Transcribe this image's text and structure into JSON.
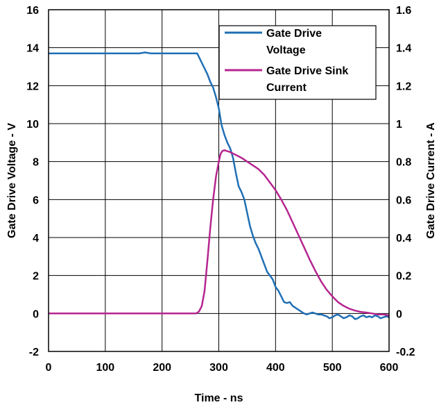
{
  "chart_data": {
    "type": "line",
    "title": "",
    "xlabel": "Time - ns",
    "ylabel": "Gate Drive Voltage - V",
    "y2label": "Gate Drive Current - A",
    "xlim": [
      0,
      600
    ],
    "ylim": [
      -2,
      16
    ],
    "y2lim": [
      -0.2,
      1.6
    ],
    "x_ticks": [
      "0",
      "100",
      "200",
      "300",
      "400",
      "500",
      "600"
    ],
    "y_ticks": [
      "-2",
      "0",
      "2",
      "4",
      "6",
      "8",
      "10",
      "12",
      "14",
      "16"
    ],
    "y2_ticks": [
      "-0.2",
      "0",
      "0.2",
      "0.4",
      "0.6",
      "0.8",
      "1",
      "1.2",
      "1.4",
      "1.6"
    ],
    "grid": true,
    "legend_position": "top-right",
    "series": [
      {
        "name": "Gate Drive Voltage",
        "axis": "left",
        "color": "#1f6fb5",
        "x": [
          0,
          100,
          160,
          170,
          180,
          240,
          262,
          270,
          280,
          285,
          290,
          295,
          300,
          305,
          310,
          315,
          320,
          325,
          330,
          335,
          340,
          345,
          350,
          355,
          360,
          365,
          370,
          375,
          380,
          385,
          390,
          395,
          400,
          405,
          410,
          415,
          420,
          425,
          430,
          435,
          440,
          445,
          450,
          455,
          460,
          465,
          470,
          475,
          480,
          485,
          490,
          495,
          500,
          505,
          510,
          515,
          520,
          525,
          530,
          535,
          540,
          545,
          550,
          555,
          560,
          565,
          570,
          575,
          580,
          585,
          590,
          595,
          600
        ],
        "values": [
          13.7,
          13.7,
          13.7,
          13.75,
          13.7,
          13.7,
          13.7,
          13.2,
          12.6,
          12.2,
          11.9,
          11.4,
          10.8,
          9.9,
          9.4,
          9.0,
          8.7,
          8.2,
          7.4,
          6.7,
          6.4,
          6.0,
          5.3,
          4.6,
          4.1,
          3.7,
          3.4,
          3.0,
          2.6,
          2.2,
          2.0,
          1.8,
          1.4,
          1.2,
          0.9,
          0.6,
          0.55,
          0.6,
          0.4,
          0.3,
          0.2,
          0.1,
          0.0,
          -0.05,
          0.0,
          0.05,
          0.0,
          -0.05,
          -0.05,
          -0.1,
          -0.15,
          -0.25,
          -0.2,
          -0.1,
          -0.05,
          -0.15,
          -0.25,
          -0.2,
          -0.1,
          -0.15,
          -0.3,
          -0.25,
          -0.15,
          -0.1,
          -0.2,
          -0.15,
          -0.2,
          -0.1,
          -0.15,
          -0.25,
          -0.2,
          -0.15,
          -0.2
        ]
      },
      {
        "name": "Gate Drive Sink Current",
        "axis": "right",
        "color": "#b5258f",
        "x": [
          0,
          100,
          200,
          260,
          265,
          270,
          275,
          280,
          285,
          290,
          295,
          300,
          303,
          306,
          310,
          320,
          330,
          340,
          350,
          360,
          370,
          380,
          390,
          400,
          410,
          420,
          430,
          440,
          450,
          460,
          470,
          480,
          490,
          500,
          510,
          520,
          530,
          540,
          550,
          560,
          570,
          580,
          590,
          600
        ],
        "values": [
          0,
          0,
          0,
          0,
          0.01,
          0.04,
          0.12,
          0.28,
          0.45,
          0.6,
          0.72,
          0.8,
          0.84,
          0.855,
          0.86,
          0.85,
          0.835,
          0.82,
          0.8,
          0.78,
          0.76,
          0.73,
          0.69,
          0.65,
          0.6,
          0.545,
          0.48,
          0.415,
          0.35,
          0.285,
          0.225,
          0.17,
          0.125,
          0.09,
          0.06,
          0.04,
          0.025,
          0.015,
          0.008,
          0.005,
          0.0,
          -0.005,
          -0.005,
          -0.01
        ]
      }
    ]
  }
}
